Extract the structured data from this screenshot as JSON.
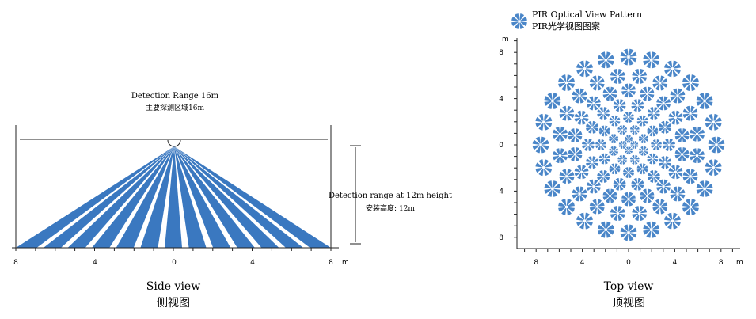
{
  "side_view": {
    "detection_range_en": "Detection Range 16m",
    "detection_range_cn": "主要探测区域16m",
    "height_en": "Detection range at 12m height",
    "height_cn": "安装高度: 12m",
    "caption_en": "Side view",
    "caption_cn": "侧视图",
    "axis_unit": "m",
    "axis_ticks": [
      "8",
      "4",
      "0",
      "4",
      "8"
    ],
    "beam_color": "#3a78c0",
    "beam_count": 13
  },
  "top_view": {
    "legend_en": "PIR Optical View Pattern",
    "legend_cn": "PIR光学视图图案",
    "caption_en": "Top view",
    "caption_cn": "顶视图",
    "axis_unit": "m",
    "x_ticks": [
      "8",
      "4",
      "0",
      "4",
      "8"
    ],
    "y_ticks": [
      "8",
      "4",
      "0",
      "4",
      "8"
    ],
    "zone_color": "#4a86c8",
    "rings": [
      {
        "radius_m": 7.6,
        "count": 24
      },
      {
        "radius_m": 6.0,
        "count": 20
      },
      {
        "radius_m": 4.7,
        "count": 18
      },
      {
        "radius_m": 3.5,
        "count": 14
      },
      {
        "radius_m": 2.4,
        "count": 12
      },
      {
        "radius_m": 1.4,
        "count": 8
      },
      {
        "radius_m": 0.5,
        "count": 4
      }
    ]
  }
}
